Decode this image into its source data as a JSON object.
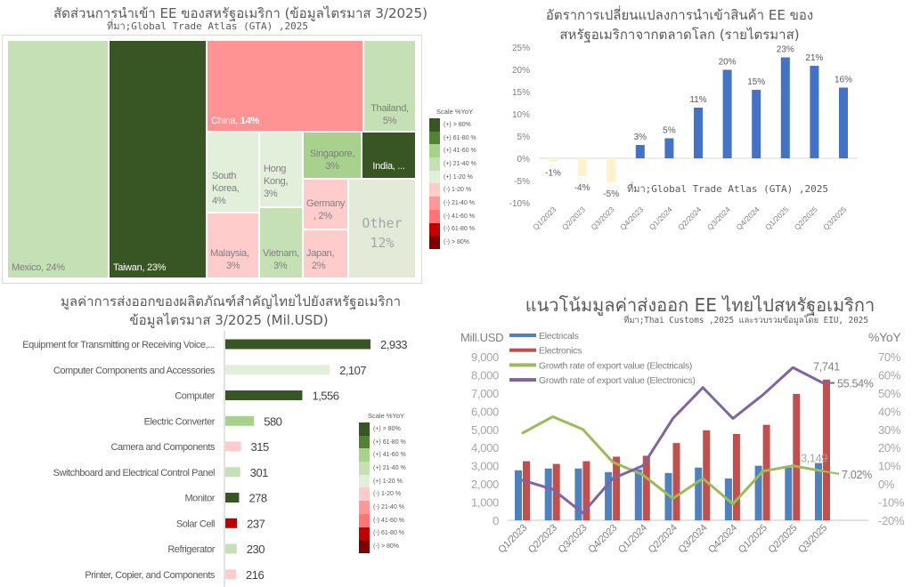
{
  "yoy_scale": {
    "title": "Scale %YoY",
    "items": [
      {
        "label": "(+) > 80%",
        "color": "#375623"
      },
      {
        "label": "(+) 61-80 %",
        "color": "#548235"
      },
      {
        "label": "(+) 41-60 %",
        "color": "#a9d18e"
      },
      {
        "label": "(+) 21-40 %",
        "color": "#c5e0b4"
      },
      {
        "label": "(+) 1-20 %",
        "color": "#e2efda"
      },
      {
        "label": "(-) 1-20 %",
        "color": "#ffcccc"
      },
      {
        "label": "(-) 21-40 %",
        "color": "#ff9999"
      },
      {
        "label": "(-) 41-60 %",
        "color": "#ff7575"
      },
      {
        "label": "(-) 61-80 %",
        "color": "#c00000"
      },
      {
        "label": "(-) > 80%",
        "color": "#7b0000"
      }
    ]
  },
  "chart_data": [
    {
      "type": "treemap",
      "title": "สัดส่วนการนำเข้า EE ของสหรัฐอเมริกา (ข้อมูลไตรมาส 3/2025)",
      "source": "ที่มา;Global Trade Atlas (GTA) ,2025",
      "legend": "right",
      "tiles": [
        {
          "name": "Mexico,",
          "share": "24%",
          "value": 24,
          "color": "#c5e0b4"
        },
        {
          "name": "Taiwan,",
          "share": "23%",
          "value": 23,
          "color": "#375623"
        },
        {
          "name": "China,",
          "share": "14%",
          "value": 14,
          "color": "#ff9393"
        },
        {
          "name": "Thailand,",
          "share": "5%",
          "value": 5,
          "color": "#c5e0b4"
        },
        {
          "name": "South Korea,",
          "share": "4%",
          "value": 4,
          "color": "#e2efda"
        },
        {
          "name": "Hong Kong,",
          "share": "3%",
          "value": 3,
          "color": "#e2efda"
        },
        {
          "name": "Singapore,",
          "share": "3%",
          "value": 3,
          "color": "#a9d18e"
        },
        {
          "name": "India, ...",
          "color": "#375623"
        },
        {
          "name": "Malaysia,",
          "share": "3%",
          "value": 3,
          "color": "#ffcccc"
        },
        {
          "name": "Vietnam,",
          "share": "3%",
          "value": 3,
          "color": "#c5e0b4"
        },
        {
          "name": "Germany",
          "share": ", 2%",
          "value": 2,
          "color": "#ffcccc"
        },
        {
          "name": "Japan,",
          "share": "2%",
          "value": 2,
          "color": "#ffcccc"
        },
        {
          "name": "Other",
          "share": "12%",
          "value": 12,
          "color": "#e4ead8"
        }
      ]
    },
    {
      "type": "bar",
      "title": [
        "อัตราการเปลี่ยนแปลงการนำเข้าสินค้า EE ของ",
        "สหรัฐอเมริกาจากตลาดโลก (รายไตรมาส)"
      ],
      "source": "ที่มา;Global Trade Atlas (GTA) ,2025",
      "categories": [
        "Q1/2023",
        "Q2/2023",
        "Q3/2023",
        "Q4/2023",
        "Q1/2024",
        "Q2/2024",
        "Q3/2024",
        "Q4/2024",
        "Q1/2025",
        "Q2/2025",
        "Q3/2025"
      ],
      "values": [
        -0.7,
        -4.0,
        -5.4,
        3.0,
        4.5,
        11.4,
        19.9,
        15.4,
        22.7,
        20.8,
        15.9
      ],
      "data_labels": [
        "-1%",
        "-4%",
        "-5%",
        "3%",
        "5%",
        "11%",
        "20%",
        "15%",
        "23%",
        "21%",
        "16%"
      ],
      "ylim": [
        -10,
        25
      ],
      "yticks": [
        {
          "value": 25,
          "label": "25%"
        },
        {
          "value": 20,
          "label": "20%"
        },
        {
          "value": 15,
          "label": "15%"
        },
        {
          "value": 10,
          "label": "10%"
        },
        {
          "value": 5,
          "label": "5%"
        },
        {
          "value": 0,
          "label": "0%"
        },
        {
          "value": -5,
          "label": "-5%"
        },
        {
          "value": -10,
          "label": "-10%"
        }
      ],
      "grid": false,
      "colors": {
        "positive": "#4472c4",
        "negative": "#fff2cc"
      }
    },
    {
      "type": "bar",
      "orientation": "horizontal",
      "title": [
        "มูลค่าการส่งออกของผลิตภัณฑ์สำคัญไทยไปยังสหรัฐอเมริกา",
        "ข้อมูลไตรมาส 3/2025 (Mil.USD)"
      ],
      "categories": [
        "Equipment for Transmitting or Receiving Voice,...",
        "Computer Components and Accessories",
        "Computer",
        "Electric Converter",
        "Camera and Components",
        "Switchboard and Electrical Control Panel",
        "Monitor",
        "Solar Cell",
        "Refrigerator",
        "Printer, Copier, and Components"
      ],
      "values": [
        2933,
        2107,
        1556,
        580,
        315,
        301,
        278,
        237,
        230,
        216
      ],
      "data_labels": [
        "2,933",
        "2,107",
        "1,556",
        "580",
        "315",
        "301",
        "278",
        "237",
        "230",
        "216"
      ],
      "colors": [
        "#375623",
        "#e2efda",
        "#375623",
        "#a9d18e",
        "#ffcccc",
        "#c5e0b4",
        "#375623",
        "#c00000",
        "#c5e0b4",
        "#ffcccc"
      ],
      "legend": "bottom-right"
    },
    {
      "type": "bar+line",
      "title": "แนวโน้มมูลค่าส่งออก EE ไทยไปสหรัฐอเมริกา",
      "source": "ที่มา;Thai Customs ,2025 และรวบรวมข้อมูลโดย EIU, 2025",
      "ylabel_left": "Mill.USD",
      "ylabel_right": "%YoY",
      "ylim_left": [
        0,
        9000
      ],
      "ylim_right": [
        -20,
        70
      ],
      "yticks_left": [
        {
          "value": 9000,
          "label": "9,000"
        },
        {
          "value": 8000,
          "label": "8,000"
        },
        {
          "value": 7000,
          "label": "7,000"
        },
        {
          "value": 6000,
          "label": "6,000"
        },
        {
          "value": 5000,
          "label": "5,000"
        },
        {
          "value": 4000,
          "label": "4,000"
        },
        {
          "value": 3000,
          "label": "3,000"
        },
        {
          "value": 2000,
          "label": "2,000"
        },
        {
          "value": 1000,
          "label": "1,000"
        },
        {
          "value": 0,
          "label": "0"
        }
      ],
      "yticks_right": [
        {
          "value": 70,
          "label": "70%"
        },
        {
          "value": 60,
          "label": "60%"
        },
        {
          "value": 50,
          "label": "50%"
        },
        {
          "value": 40,
          "label": "40%"
        },
        {
          "value": 30,
          "label": "30%"
        },
        {
          "value": 20,
          "label": "20%"
        },
        {
          "value": 10,
          "label": "10%"
        },
        {
          "value": 0,
          "label": "0%"
        },
        {
          "value": -10,
          "label": "-10%"
        },
        {
          "value": -20,
          "label": "-20%"
        }
      ],
      "categories": [
        "Q1/2023",
        "Q2/2023",
        "Q3/2023",
        "Q4/2023",
        "Q1/2024",
        "Q2/2024",
        "Q3/2024",
        "Q4/2024",
        "Q1/2025",
        "Q2/2025",
        "Q3/2025"
      ],
      "series": [
        {
          "name": "Electricals",
          "type": "bar",
          "axis": "left",
          "color": "#4f81bd",
          "values": [
            2750,
            2850,
            2850,
            2650,
            2800,
            2600,
            2900,
            2300,
            3000,
            2900,
            3149
          ]
        },
        {
          "name": "Electronics",
          "type": "bar",
          "axis": "left",
          "color": "#c0504d",
          "values": [
            3250,
            3100,
            3250,
            3500,
            3550,
            4250,
            4950,
            4750,
            5250,
            6950,
            7741
          ]
        },
        {
          "name": "Growth rate of export value (Electricals)",
          "type": "line",
          "axis": "right",
          "color": "#9bbb59",
          "values": [
            28,
            37,
            30,
            12,
            5,
            -8,
            3,
            -11,
            7,
            10,
            7.02
          ]
        },
        {
          "name": "Growth rate of export value (Electronics)",
          "type": "line",
          "axis": "right",
          "color": "#8064a2",
          "values": [
            2,
            -3,
            -16,
            3,
            10,
            36,
            53,
            36,
            49,
            64,
            55.54
          ]
        }
      ],
      "annotations": [
        {
          "text": "7,741",
          "series": 1
        },
        {
          "text": "55.54%",
          "series": 3
        },
        {
          "text": "3,149",
          "series": 0
        },
        {
          "text": "7.02%",
          "series": 2
        }
      ],
      "legend": "top-left"
    }
  ]
}
